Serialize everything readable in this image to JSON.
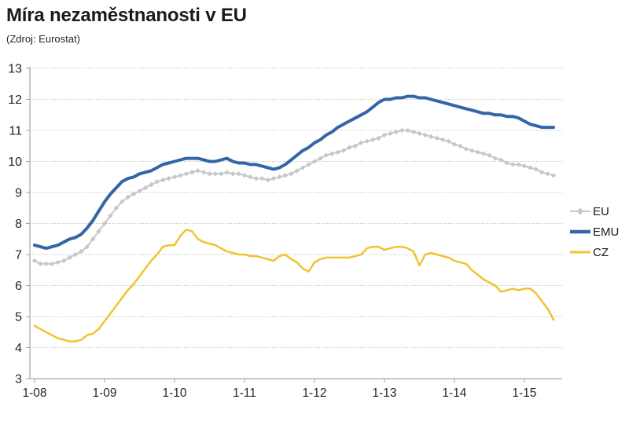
{
  "title": "Míra nezaměstnanosti v EU",
  "subtitle": "(Zdroj: Eurostat)",
  "chart_data": {
    "type": "line",
    "title": "Míra nezaměstnanosti v EU",
    "subtitle": "(Zdroj: Eurostat)",
    "xlabel": "",
    "ylabel": "",
    "ylim": [
      3,
      13
    ],
    "y_ticks": [
      3,
      4,
      5,
      6,
      7,
      8,
      9,
      10,
      11,
      12,
      13
    ],
    "x_start_month": "2008-01",
    "x_end_month": "2015-06",
    "frequency": "monthly",
    "points_per_series": 90,
    "x_tick_labels": [
      "1-08",
      "1-09",
      "1-10",
      "1-11",
      "1-12",
      "1-13",
      "1-14",
      "1-15"
    ],
    "x_tick_month_indices": [
      0,
      12,
      24,
      36,
      48,
      60,
      72,
      84
    ],
    "grid": "horizontal-dotted",
    "grid_color": "#C2C2C2",
    "axis_color": "#A6A6A6",
    "tick_label_color": "#262626",
    "legend_position": "right-middle",
    "series": [
      {
        "name": "EU",
        "color": "#C7C7C7",
        "marker": "diamond",
        "width": 2,
        "z": 0,
        "values": [
          6.8,
          6.7,
          6.7,
          6.7,
          6.75,
          6.8,
          6.9,
          7.0,
          7.1,
          7.25,
          7.5,
          7.75,
          8.0,
          8.25,
          8.5,
          8.7,
          8.85,
          8.95,
          9.05,
          9.15,
          9.25,
          9.35,
          9.4,
          9.45,
          9.5,
          9.55,
          9.6,
          9.65,
          9.7,
          9.65,
          9.6,
          9.6,
          9.6,
          9.65,
          9.6,
          9.6,
          9.55,
          9.5,
          9.45,
          9.45,
          9.4,
          9.45,
          9.5,
          9.55,
          9.6,
          9.7,
          9.8,
          9.9,
          10.0,
          10.1,
          10.2,
          10.25,
          10.3,
          10.35,
          10.45,
          10.5,
          10.6,
          10.65,
          10.7,
          10.75,
          10.85,
          10.9,
          10.95,
          11.0,
          11.0,
          10.95,
          10.9,
          10.85,
          10.8,
          10.75,
          10.7,
          10.65,
          10.55,
          10.5,
          10.4,
          10.35,
          10.3,
          10.25,
          10.2,
          10.1,
          10.05,
          9.95,
          9.9,
          9.9,
          9.85,
          9.8,
          9.75,
          9.65,
          9.6,
          9.55
        ]
      },
      {
        "name": "EMU",
        "color": "#3465A8",
        "marker": "none",
        "width": 4,
        "z": 2,
        "values": [
          7.3,
          7.25,
          7.2,
          7.25,
          7.3,
          7.4,
          7.5,
          7.55,
          7.65,
          7.85,
          8.1,
          8.4,
          8.7,
          8.95,
          9.15,
          9.35,
          9.45,
          9.5,
          9.6,
          9.65,
          9.7,
          9.8,
          9.9,
          9.95,
          10.0,
          10.05,
          10.1,
          10.1,
          10.1,
          10.05,
          10.0,
          10.0,
          10.05,
          10.1,
          10.0,
          9.95,
          9.95,
          9.9,
          9.9,
          9.85,
          9.8,
          9.75,
          9.8,
          9.9,
          10.05,
          10.2,
          10.35,
          10.45,
          10.6,
          10.7,
          10.85,
          10.95,
          11.1,
          11.2,
          11.3,
          11.4,
          11.5,
          11.6,
          11.75,
          11.9,
          12.0,
          12.0,
          12.05,
          12.05,
          12.1,
          12.1,
          12.05,
          12.05,
          12.0,
          11.95,
          11.9,
          11.85,
          11.8,
          11.75,
          11.7,
          11.65,
          11.6,
          11.55,
          11.55,
          11.5,
          11.5,
          11.45,
          11.45,
          11.4,
          11.3,
          11.2,
          11.15,
          11.1,
          11.1,
          11.1
        ]
      },
      {
        "name": "CZ",
        "color": "#F1C331",
        "marker": "none",
        "width": 2.5,
        "z": 1,
        "values": [
          4.7,
          4.6,
          4.5,
          4.4,
          4.3,
          4.25,
          4.2,
          4.2,
          4.25,
          4.4,
          4.45,
          4.6,
          4.85,
          5.1,
          5.35,
          5.6,
          5.85,
          6.05,
          6.3,
          6.55,
          6.8,
          7.0,
          7.25,
          7.3,
          7.3,
          7.6,
          7.8,
          7.75,
          7.5,
          7.4,
          7.35,
          7.3,
          7.2,
          7.1,
          7.05,
          7.0,
          7.0,
          6.95,
          6.95,
          6.9,
          6.85,
          6.8,
          6.95,
          7.0,
          6.85,
          6.75,
          6.55,
          6.45,
          6.75,
          6.85,
          6.9,
          6.9,
          6.9,
          6.9,
          6.9,
          6.95,
          7.0,
          7.2,
          7.25,
          7.25,
          7.15,
          7.2,
          7.25,
          7.25,
          7.2,
          7.1,
          6.65,
          7.0,
          7.05,
          7.0,
          6.95,
          6.9,
          6.8,
          6.75,
          6.7,
          6.5,
          6.35,
          6.2,
          6.1,
          6.0,
          5.8,
          5.85,
          5.9,
          5.85,
          5.9,
          5.9,
          5.75,
          5.5,
          5.25,
          4.9
        ]
      }
    ]
  }
}
